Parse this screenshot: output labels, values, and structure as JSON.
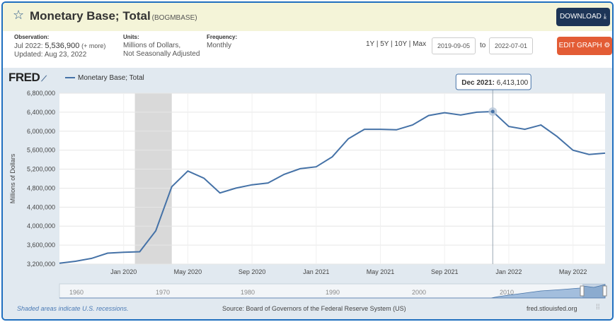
{
  "header": {
    "title": "Monetary Base; Total",
    "series_id": "(BOGMBASE)",
    "download_label": "DOWNLOAD ⤓"
  },
  "meta": {
    "observation_label": "Observation:",
    "observation_value": "Jul 2022: ",
    "observation_number": "5,536,900",
    "observation_more": "(+ more)",
    "updated": "Updated: Aug 23, 2022",
    "units_label": "Units:",
    "units_line1": "Millions of Dollars,",
    "units_line2": "Not Seasonally Adjusted",
    "frequency_label": "Frequency:",
    "frequency_value": "Monthly"
  },
  "controls": {
    "ranges": "1Y | 5Y | 10Y | Max",
    "start_date": "2019-09-05",
    "to_label": "to",
    "end_date": "2022-07-01",
    "edit_label": "EDIT GRAPH ⚙"
  },
  "chart_data": {
    "type": "line",
    "title": "Monetary Base; Total",
    "ylabel": "Millions of Dollars",
    "xlabel": "",
    "ylim": [
      3200000,
      6800000
    ],
    "yticks": [
      3200000,
      3600000,
      4000000,
      4400000,
      4800000,
      5200000,
      5600000,
      6000000,
      6400000,
      6800000
    ],
    "ytick_labels": [
      "3,200,000",
      "3,600,000",
      "4,000,000",
      "4,400,000",
      "4,800,000",
      "5,200,000",
      "5,600,000",
      "6,000,000",
      "6,400,000",
      "6,800,000"
    ],
    "xtick_labels": [
      "Jan 2020",
      "May 2020",
      "Sep 2020",
      "Jan 2021",
      "May 2021",
      "Sep 2021",
      "Jan 2022",
      "May 2022"
    ],
    "xtick_index": [
      4,
      8,
      12,
      16,
      20,
      24,
      28,
      32
    ],
    "recession": {
      "start_index": 5,
      "end_index": 7
    },
    "series": [
      {
        "name": "Monetary Base; Total",
        "color": "#4572a7",
        "dates": [
          "Sep 2019",
          "Oct 2019",
          "Nov 2019",
          "Dec 2019",
          "Jan 2020",
          "Feb 2020",
          "Mar 2020",
          "Apr 2020",
          "May 2020",
          "Jun 2020",
          "Jul 2020",
          "Aug 2020",
          "Sep 2020",
          "Oct 2020",
          "Nov 2020",
          "Dec 2020",
          "Jan 2021",
          "Feb 2021",
          "Mar 2021",
          "Apr 2021",
          "May 2021",
          "Jun 2021",
          "Jul 2021",
          "Aug 2021",
          "Sep 2021",
          "Oct 2021",
          "Nov 2021",
          "Dec 2021",
          "Jan 2022",
          "Feb 2022",
          "Mar 2022",
          "Apr 2022",
          "May 2022",
          "Jun 2022",
          "Jul 2022"
        ],
        "values": [
          3220000,
          3260000,
          3320000,
          3430000,
          3450000,
          3460000,
          3900000,
          4830000,
          5160000,
          5010000,
          4700000,
          4800000,
          4870000,
          4910000,
          5090000,
          5210000,
          5250000,
          5460000,
          5840000,
          6040000,
          6040000,
          6030000,
          6130000,
          6330000,
          6390000,
          6340000,
          6400000,
          6413100,
          6100000,
          6040000,
          6130000,
          5890000,
          5600000,
          5510000,
          5536900
        ]
      }
    ],
    "tooltip": {
      "label": "Dec 2021:",
      "value": "6,413,100",
      "index": 27
    },
    "navigator": {
      "labels": [
        "1960",
        "1970",
        "1980",
        "1990",
        "2000",
        "2010"
      ]
    }
  },
  "footer": {
    "recession_note": "Shaded areas indicate U.S. recessions.",
    "source": "Source: Board of Governors of the Federal Reserve System (US)",
    "site": "fred.stlouisfed.org"
  },
  "logo": {
    "text": "FRED"
  },
  "colors": {
    "header_bg": "#f4f4d8",
    "download_btn": "#1d3557",
    "edit_btn": "#e35c35",
    "line": "#4572a7",
    "chart_bg": "#e1e9f0",
    "recession": "#d9d9d9"
  }
}
